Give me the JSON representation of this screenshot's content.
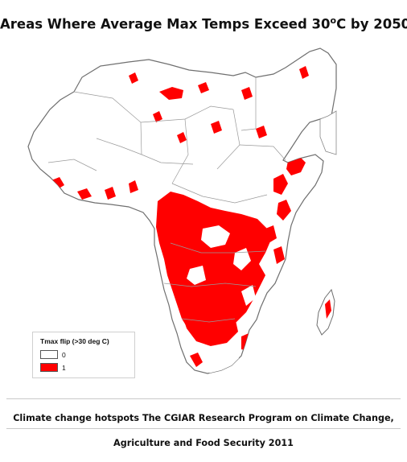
{
  "title": {
    "text": "Areas Where Average Max Temps Exceed 30",
    "degree_symbol": "o",
    "suffix": "C by 2050"
  },
  "map": {
    "region": "Africa",
    "variable": "Tmax flip (>30 deg C)",
    "land_color": "#ffffff",
    "border_color": "#8a8a8a",
    "hotspot_color": "#ff0000"
  },
  "legend": {
    "title": "Tmax flip (>30 deg C)",
    "items": [
      {
        "label": "0",
        "color": "#ffffff"
      },
      {
        "label": "1",
        "color": "#ff0000"
      }
    ]
  },
  "caption": {
    "line1": "Climate change hotspots The CGIAR Research Program on Climate Change,",
    "line2": "Agriculture and Food Security 2011"
  }
}
